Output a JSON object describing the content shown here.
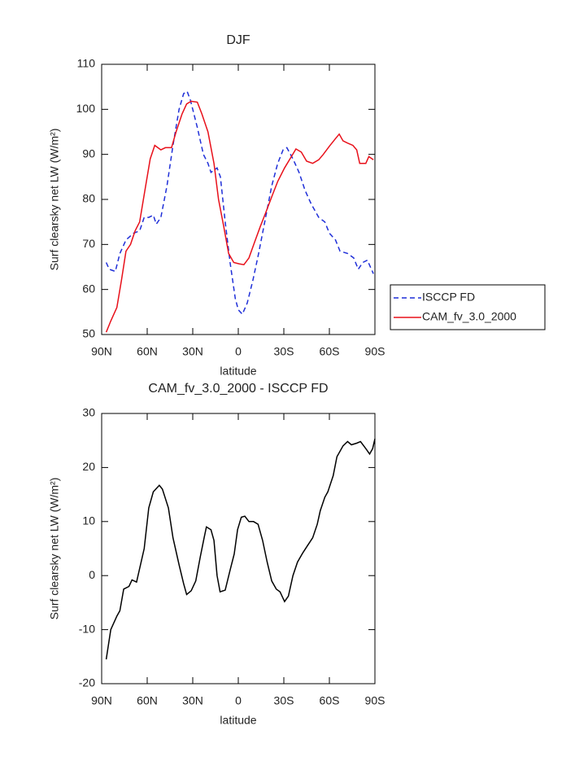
{
  "chart_data": [
    {
      "type": "line",
      "title": "DJF",
      "xlabel": "latitude",
      "ylabel": "Surf clearsky net LW (W/m²)",
      "xlim": [
        90,
        -90
      ],
      "xticks": [
        {
          "value": 90,
          "label": "90N"
        },
        {
          "value": 60,
          "label": "60N"
        },
        {
          "value": 30,
          "label": "30N"
        },
        0,
        {
          "value": -30,
          "label": "30S"
        },
        {
          "value": -60,
          "label": "60S"
        },
        {
          "value": -90,
          "label": "90S"
        }
      ],
      "ylim": [
        50,
        110
      ],
      "yticks": [
        50,
        60,
        70,
        80,
        90,
        100,
        110
      ],
      "legend": "outside-right",
      "series": [
        {
          "name": "ISCCP FD",
          "color": "#1f2fd8",
          "dash": true,
          "x": [
            87,
            85,
            81,
            78,
            74,
            69,
            65,
            62,
            59,
            56,
            54,
            51,
            47,
            43,
            39,
            36,
            33.7,
            31.5,
            27,
            23,
            20,
            18,
            14,
            11.8,
            8.6,
            5.4,
            2,
            0,
            -2.7,
            -5.9,
            -9.6,
            -13.4,
            -18,
            -22,
            -26,
            -29.5,
            -32,
            -36,
            -40,
            -44,
            -48,
            -53,
            -57,
            -60,
            -64,
            -67,
            -72,
            -76,
            -79,
            -82,
            -85,
            -89
          ],
          "values": [
            66,
            64.5,
            64,
            68,
            71,
            72.5,
            73,
            76,
            76,
            76.5,
            74.5,
            76,
            83,
            92,
            100,
            103.5,
            104,
            102,
            96,
            90,
            88,
            86,
            87,
            85,
            75,
            66,
            58,
            55.5,
            54.5,
            57,
            62,
            68,
            76,
            83,
            88,
            91,
            91.5,
            89,
            86,
            82,
            79,
            76,
            75,
            72.5,
            71,
            68.5,
            68,
            67,
            64.5,
            66,
            66.5,
            63.5
          ]
        },
        {
          "name": "CAM_fv_3.0_2000",
          "color": "#e8101a",
          "dash": false,
          "x": [
            87,
            84,
            80,
            77,
            74,
            71,
            68,
            65,
            61,
            58,
            55,
            51,
            48,
            44,
            41,
            37,
            34,
            31,
            27,
            24,
            20,
            16,
            13,
            9.6,
            6.4,
            3,
            -0.5,
            -3.7,
            -7,
            -10.7,
            -14.5,
            -18,
            -22.5,
            -26,
            -30.5,
            -35,
            -38,
            -41.5,
            -45,
            -49,
            -53,
            -56,
            -60,
            -64,
            -66.5,
            -69,
            -72,
            -75.5,
            -78,
            -80,
            -84,
            -86,
            -89
          ],
          "values": [
            50.5,
            53,
            56,
            62,
            68.5,
            70,
            73,
            75,
            83,
            89,
            92,
            91,
            91.5,
            91.5,
            95,
            99,
            101.2,
            101.8,
            101.6,
            99,
            95,
            88,
            80,
            74,
            68,
            66,
            65.7,
            65.5,
            67,
            70.5,
            74,
            77,
            81,
            84,
            87,
            89.5,
            91.2,
            90.5,
            88.5,
            88,
            88.8,
            90,
            91.8,
            93.5,
            94.5,
            93,
            92.5,
            92,
            91,
            88,
            88,
            89.5,
            88.8
          ]
        }
      ]
    },
    {
      "type": "line",
      "title": "CAM_fv_3.0_2000 - ISCCP FD",
      "xlabel": "latitude",
      "ylabel": "Surf clearsky net LW (W/m²)",
      "xlim": [
        90,
        -90
      ],
      "xticks": [
        {
          "value": 90,
          "label": "90N"
        },
        {
          "value": 60,
          "label": "60N"
        },
        {
          "value": 30,
          "label": "30N"
        },
        0,
        {
          "value": -30,
          "label": "30S"
        },
        {
          "value": -60,
          "label": "60S"
        },
        {
          "value": -90,
          "label": "90S"
        }
      ],
      "ylim": [
        -20,
        30
      ],
      "yticks": [
        -20,
        -10,
        0,
        10,
        20,
        30
      ],
      "color": "#000000",
      "x": [
        87,
        84,
        80,
        78,
        75.5,
        72,
        70,
        67,
        62,
        59,
        56,
        52,
        50,
        46,
        43,
        39,
        36,
        34,
        31,
        28,
        25,
        22.5,
        21,
        18,
        16,
        14,
        12,
        8.6,
        5.4,
        2.7,
        0.5,
        -2,
        -4.3,
        -7,
        -10,
        -13,
        -16,
        -19,
        -22,
        -25,
        -27.5,
        -30.5,
        -33,
        -36,
        -39,
        -42.5,
        -45.5,
        -49,
        -52,
        -54,
        -57,
        -59,
        -62.5,
        -65,
        -69,
        -72,
        -74.5,
        -78,
        -80.5,
        -84,
        -86.5,
        -88.5,
        -90
      ],
      "values": [
        -15.5,
        -10,
        -7.5,
        -6.5,
        -2.5,
        -2,
        -0.8,
        -1.2,
        5,
        12.5,
        15.5,
        16.7,
        16,
        12.5,
        7,
        2,
        -1.5,
        -3.5,
        -2.8,
        -1,
        3.5,
        7,
        9,
        8.5,
        6.5,
        0,
        -3,
        -2.7,
        1,
        4,
        8.5,
        10.8,
        11,
        10,
        10,
        9.5,
        6.5,
        2.5,
        -1,
        -2.5,
        -3,
        -4.8,
        -3.8,
        0,
        2.5,
        4.2,
        5.5,
        7,
        9.5,
        12,
        14.5,
        15.5,
        18.5,
        22,
        24,
        24.8,
        24.2,
        24.5,
        24.8,
        23.5,
        22.5,
        23.5,
        25.3
      ]
    }
  ]
}
